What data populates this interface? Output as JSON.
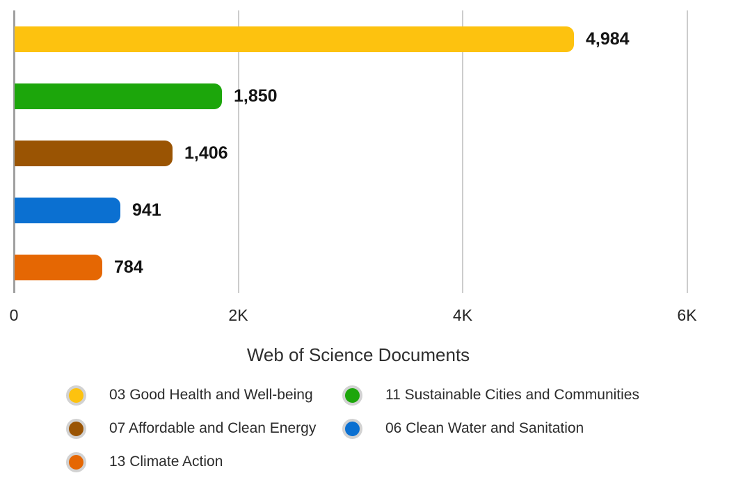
{
  "chart_data": {
    "type": "bar",
    "orientation": "horizontal",
    "title": "",
    "xlabel": "Web of Science Documents",
    "ylabel": "",
    "categories": [
      "03 Good Health and Well-being",
      "11 Sustainable Cities and Communities",
      "07 Affordable and Clean Energy",
      "06 Clean Water and Sanitation",
      "13 Climate Action"
    ],
    "values": [
      4984,
      1850,
      1406,
      941,
      784
    ],
    "value_labels": [
      "4,984",
      "1,850",
      "1,406",
      "941",
      "784"
    ],
    "colors": [
      "#FDC20F",
      "#1CA60B",
      "#9A5403",
      "#0B70D1",
      "#E56703"
    ],
    "x_ticks": [
      {
        "value": 0,
        "label": "0"
      },
      {
        "value": 2000,
        "label": "2K"
      },
      {
        "value": 4000,
        "label": "4K"
      },
      {
        "value": 6000,
        "label": "6K"
      }
    ],
    "xlim": [
      0,
      6200
    ],
    "grid": "vertical-gridlines-only",
    "legend_position": "bottom-two-columns",
    "legend": [
      {
        "label": "03 Good Health and Well-being",
        "color": "#FDC20F"
      },
      {
        "label": "11 Sustainable Cities and Communities",
        "color": "#1CA60B"
      },
      {
        "label": "07 Affordable and Clean Energy",
        "color": "#9A5403"
      },
      {
        "label": "06 Clean Water and Sanitation",
        "color": "#0B70D1"
      },
      {
        "label": "13 Climate Action",
        "color": "#E56703"
      }
    ]
  },
  "colors": {
    "gridline": "#CCCCCC",
    "axis_line": "#A0A0A0",
    "legend_ring": "#D2D2D2",
    "value_text": "#141414",
    "tick_text": "#262626",
    "title_text": "#2E2E2E",
    "legend_text": "#2B2B2B"
  }
}
